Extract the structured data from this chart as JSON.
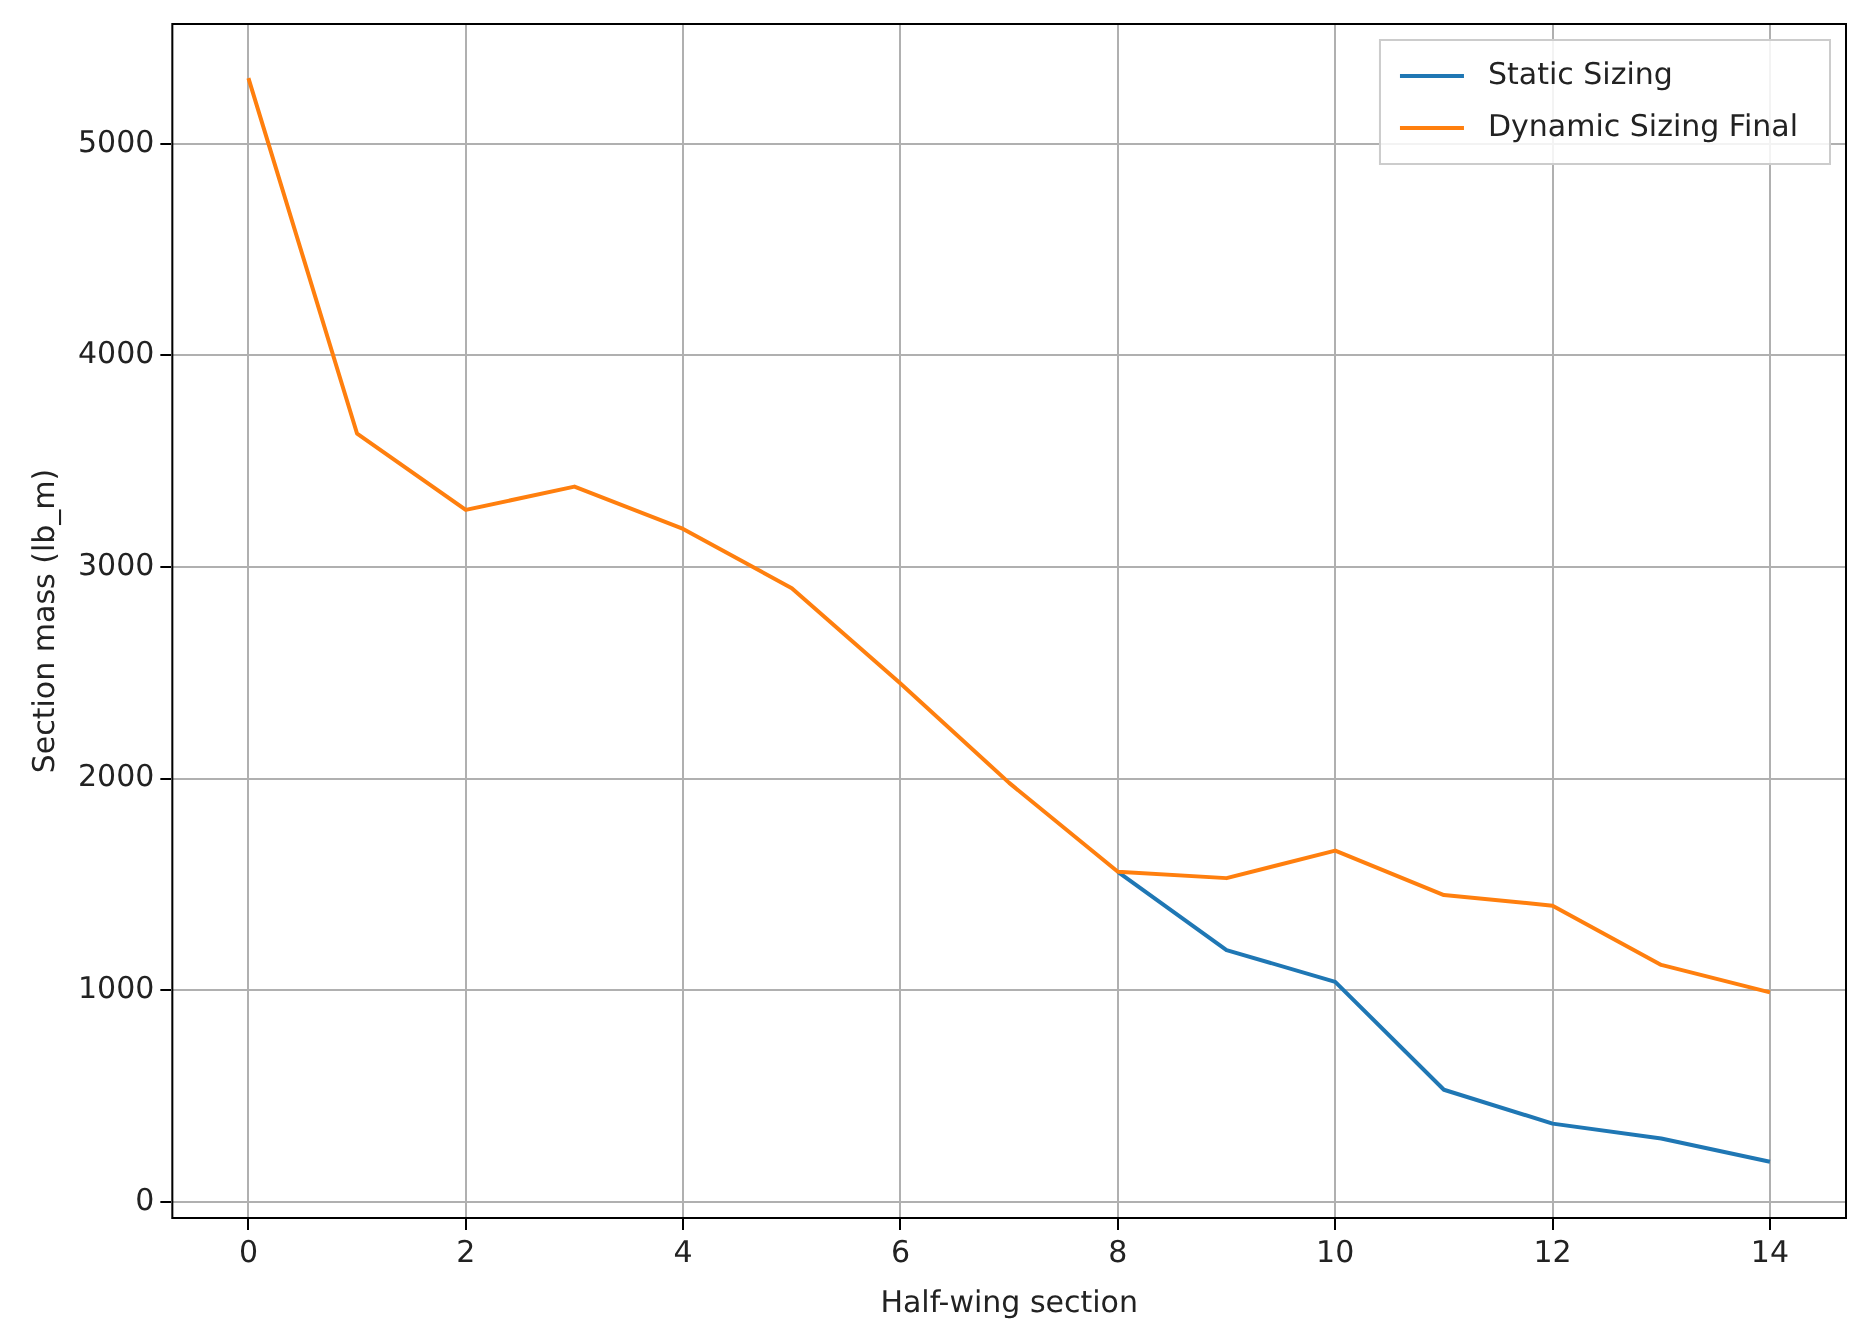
{
  "chart_data": {
    "type": "line",
    "xlabel": "Half-wing section",
    "ylabel": "Section mass (lb_m)",
    "x": [
      0,
      1,
      2,
      3,
      4,
      5,
      6,
      7,
      8,
      9,
      10,
      11,
      12,
      13,
      14
    ],
    "series": [
      {
        "name": "Static Sizing",
        "color": "#1f77b4",
        "values": [
          null,
          null,
          null,
          null,
          null,
          null,
          null,
          null,
          1560,
          1190,
          1040,
          530,
          370,
          300,
          190
        ]
      },
      {
        "name": "Dynamic Sizing Final",
        "color": "#ff7f0e",
        "values": [
          5310,
          3630,
          3270,
          3380,
          3180,
          2900,
          2450,
          1980,
          1560,
          1530,
          1660,
          1450,
          1400,
          1120,
          990
        ]
      }
    ],
    "xlim": [
      -0.7,
      14.7
    ],
    "ylim": [
      -76,
      5566
    ],
    "xticks": [
      0,
      2,
      4,
      6,
      8,
      10,
      12,
      14
    ],
    "yticks": [
      0,
      1000,
      2000,
      3000,
      4000,
      5000
    ],
    "grid": true,
    "legend": "top right",
    "marker": "none",
    "line_style": "solid"
  }
}
